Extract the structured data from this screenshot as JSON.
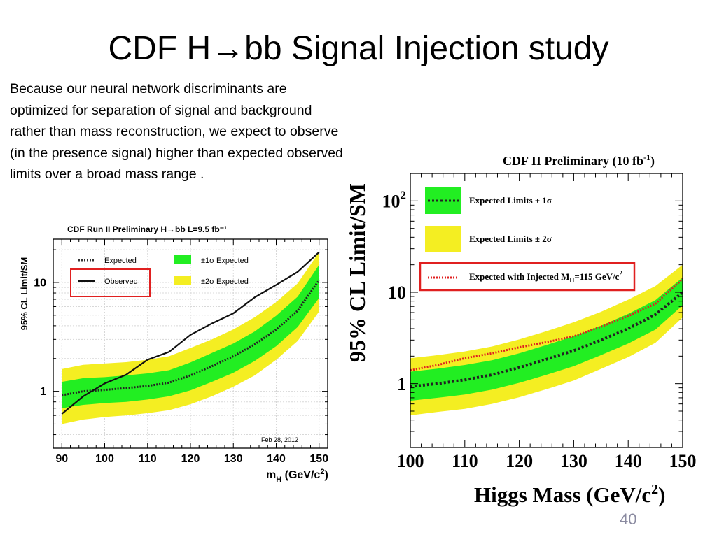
{
  "slide": {
    "title": "CDF H→bb  Signal Injection study",
    "intro": "Because our neural network discriminants are optimized for separation of signal and background rather than mass reconstruction, we expect to observe (in the presence signal) higher than expected observed limits over a broad mass range .",
    "page_number": "40"
  },
  "chart_data": [
    {
      "type": "line",
      "title": "CDF Run II Preliminary  H→bb  L=9.5 fb⁻¹",
      "xlabel": "m_H (GeV/c²)",
      "ylabel": "95% CL Limit/SM",
      "xlim": [
        88,
        152
      ],
      "ylim": [
        0.3,
        25
      ],
      "yscale": "log",
      "date_label": "Feb 28, 2012",
      "xticks": [
        90,
        100,
        110,
        120,
        130,
        140,
        150
      ],
      "yticks": [
        {
          "v": 1,
          "label": "1"
        },
        {
          "v": 10,
          "label": "10"
        }
      ],
      "x": [
        90,
        95,
        100,
        105,
        110,
        115,
        120,
        125,
        130,
        135,
        140,
        145,
        150
      ],
      "series": [
        {
          "name": "Expected",
          "style": "dotted",
          "values": [
            0.92,
            1.0,
            1.03,
            1.07,
            1.12,
            1.2,
            1.4,
            1.7,
            2.1,
            2.7,
            3.7,
            5.5,
            10.5
          ]
        },
        {
          "name": "Observed",
          "style": "solid",
          "values": [
            0.62,
            0.9,
            1.18,
            1.42,
            1.95,
            2.3,
            3.3,
            4.2,
            5.2,
            7.3,
            9.5,
            12.5,
            19.0
          ]
        },
        {
          "name": "±1σ Expected",
          "style": "band",
          "low": [
            0.7,
            0.75,
            0.78,
            0.8,
            0.84,
            0.9,
            1.02,
            1.22,
            1.48,
            1.9,
            2.6,
            3.9,
            7.2
          ],
          "high": [
            1.22,
            1.32,
            1.35,
            1.4,
            1.46,
            1.56,
            1.84,
            2.25,
            2.75,
            3.55,
            4.95,
            7.4,
            14.5
          ]
        },
        {
          "name": "±2σ Expected",
          "style": "band",
          "low": [
            0.5,
            0.55,
            0.58,
            0.6,
            0.63,
            0.67,
            0.76,
            0.9,
            1.1,
            1.4,
            1.95,
            2.9,
            5.4
          ],
          "high": [
            1.6,
            1.75,
            1.8,
            1.85,
            1.95,
            2.1,
            2.5,
            3.0,
            3.7,
            4.8,
            6.6,
            9.8,
            19.0
          ]
        }
      ],
      "legend": {
        "position": "top",
        "expected": "Expected",
        "observed": "Observed",
        "one_sigma": "±1σ Expected",
        "two_sigma": "±2σ Expected"
      }
    },
    {
      "type": "line",
      "title": "CDF II Preliminary (10 fb",
      "title_sup": "-1",
      "title_end": ")",
      "xlabel": "Higgs Mass (GeV/c",
      "xlabel_sup": "2",
      "xlabel_end": ")",
      "ylabel": "95% CL Limit/SM",
      "xlim": [
        100,
        150
      ],
      "ylim": [
        0.2,
        200
      ],
      "yscale": "log",
      "xticks": [
        100,
        110,
        120,
        130,
        140,
        150
      ],
      "yticks": [
        {
          "v": 1,
          "label": "1"
        },
        {
          "v": 10,
          "label": "10"
        },
        {
          "v": 100,
          "label": "10",
          "sup": "2"
        }
      ],
      "x": [
        100,
        105,
        110,
        115,
        120,
        125,
        130,
        135,
        140,
        145,
        150
      ],
      "series": [
        {
          "name": "Expected Limits",
          "style": "dotted",
          "values": [
            0.93,
            1.0,
            1.1,
            1.25,
            1.5,
            1.85,
            2.3,
            3.0,
            4.0,
            5.7,
            10.0
          ]
        },
        {
          "name": "Expected with Injected M_H=115 GeV/c²",
          "style": "dotted-red",
          "values": [
            1.4,
            1.6,
            1.9,
            2.15,
            2.5,
            2.85,
            3.3,
            4.2,
            5.5,
            7.5,
            14.0
          ]
        },
        {
          "name": "Expected Limits ± 1σ",
          "style": "band",
          "low": [
            0.65,
            0.7,
            0.76,
            0.86,
            1.02,
            1.25,
            1.55,
            2.05,
            2.75,
            3.9,
            7.2
          ],
          "high": [
            1.35,
            1.46,
            1.6,
            1.8,
            2.15,
            2.65,
            3.3,
            4.3,
            5.8,
            8.2,
            14.5
          ]
        },
        {
          "name": "Expected Limits ± 2σ",
          "style": "band",
          "low": [
            0.45,
            0.49,
            0.53,
            0.6,
            0.71,
            0.87,
            1.08,
            1.45,
            1.95,
            2.8,
            5.3
          ],
          "high": [
            1.9,
            2.05,
            2.25,
            2.55,
            3.05,
            3.75,
            4.7,
            6.1,
            8.3,
            11.7,
            20.0
          ]
        }
      ],
      "legend": {
        "position": "top-left",
        "one_sigma": "Expected Limits ± 1σ",
        "two_sigma": "Expected Limits ± 2σ",
        "injected": "Expected with Injected M",
        "injected_sub": "H",
        "injected_end": "=115 GeV/c",
        "injected_sup": "2"
      }
    }
  ],
  "colors": {
    "band_one_sigma": "#22ee22",
    "band_two_sigma": "#f4ee22",
    "highlight_box": "#e02020",
    "injected_line": "#e02020"
  }
}
